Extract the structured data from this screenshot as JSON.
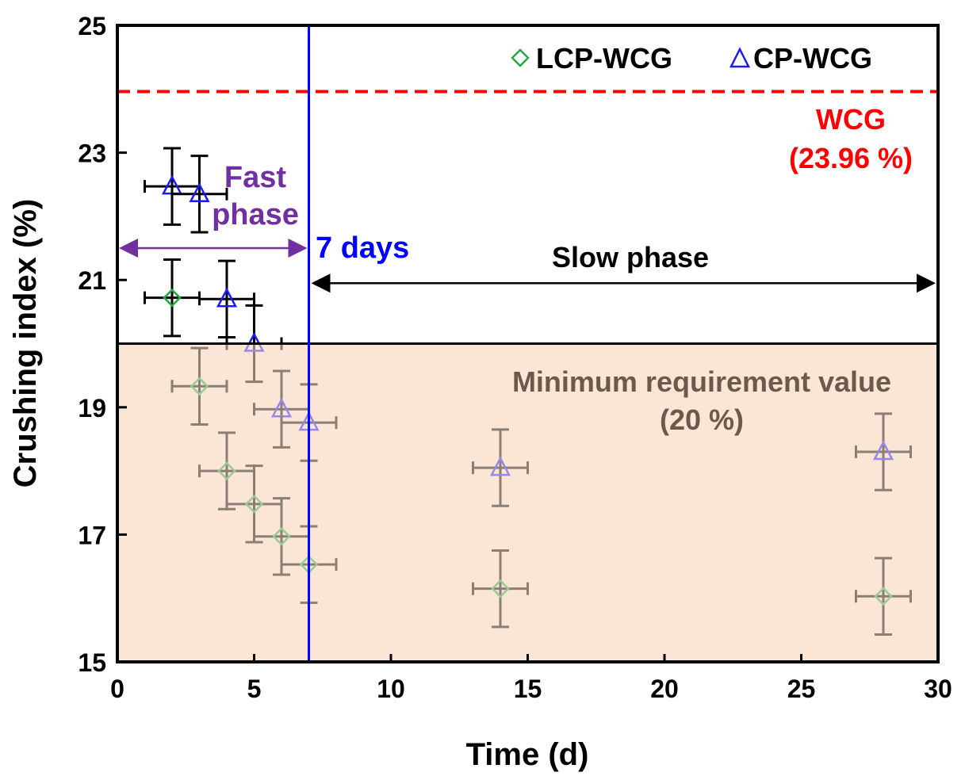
{
  "chart_data": {
    "type": "scatter",
    "title": "",
    "xlabel": "Time (d)",
    "ylabel": "Crushing index (%)",
    "xlim": [
      0,
      30
    ],
    "ylim": [
      15,
      25
    ],
    "xticks": [
      0,
      5,
      10,
      15,
      20,
      25,
      30
    ],
    "yticks": [
      15,
      17,
      19,
      21,
      23,
      25
    ],
    "grid": false,
    "legend_placement": "top-right",
    "series": [
      {
        "name": "LCP-WCG",
        "marker": "diamond",
        "color": "#22aa44",
        "x": [
          2,
          3,
          4,
          5,
          6,
          7,
          14,
          28
        ],
        "y": [
          20.72,
          19.33,
          18.0,
          17.48,
          16.97,
          16.53,
          16.15,
          16.03
        ],
        "yerr": [
          0.6,
          0.6,
          0.6,
          0.6,
          0.6,
          0.6,
          0.6,
          0.6
        ],
        "xerr": [
          1,
          1,
          1,
          1,
          1,
          1,
          1,
          1
        ]
      },
      {
        "name": "CP-WCG",
        "marker": "triangle",
        "color": "#1a1aff",
        "x": [
          2,
          3,
          4,
          5,
          6,
          7,
          14,
          28
        ],
        "y": [
          22.47,
          22.35,
          20.7,
          20.0,
          18.97,
          18.76,
          18.05,
          18.3
        ],
        "yerr": [
          0.6,
          0.6,
          0.6,
          0.6,
          0.6,
          0.6,
          0.6,
          0.6
        ],
        "xerr": [
          1,
          1,
          1,
          1,
          1,
          1,
          1,
          1
        ]
      }
    ],
    "reference_lines": {
      "wcg": {
        "value": 23.96,
        "label": "WCG",
        "sublabel": "(23.96 %)",
        "color": "#ff0000"
      },
      "minimum": {
        "value": 20,
        "label": "Minimum requirement value",
        "sublabel": "(20 %)",
        "color": "#000000"
      },
      "seven_days": {
        "value": 7,
        "label": "7 days",
        "color": "#0000ff"
      }
    },
    "annotations": {
      "fast_phase": {
        "line1": "Fast",
        "line2": "phase",
        "from": 0,
        "to": 7,
        "y": 21.5,
        "color": "#7030a0"
      },
      "slow_phase": {
        "label": "Slow phase",
        "from": 7,
        "to": 30,
        "y": 20.95
      }
    },
    "shaded_region": {
      "from": 15,
      "to": 20,
      "color": "#fbe5d6"
    }
  }
}
